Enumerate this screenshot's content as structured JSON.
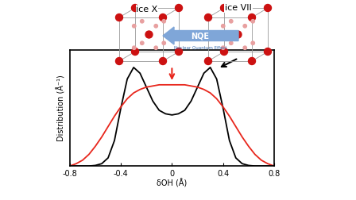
{
  "chart_data": {
    "type": "line",
    "x_label": "δOH (Å)",
    "y_label": "Distribution (Å⁻¹)",
    "x": [
      -0.8,
      -0.75,
      -0.7,
      -0.65,
      -0.6,
      -0.55,
      -0.5,
      -0.45,
      -0.4,
      -0.35,
      -0.3,
      -0.25,
      -0.2,
      -0.15,
      -0.1,
      -0.05,
      0,
      0.05,
      0.1,
      0.15,
      0.2,
      0.25,
      0.3,
      0.35,
      0.4,
      0.45,
      0.5,
      0.55,
      0.6,
      0.65,
      0.7,
      0.75,
      0.8
    ],
    "series": [
      {
        "color": "#000000",
        "values": [
          0,
          0,
          0,
          0,
          0.005,
          0.02,
          0.07,
          0.22,
          0.5,
          0.75,
          0.85,
          0.8,
          0.68,
          0.56,
          0.48,
          0.45,
          0.44,
          0.45,
          0.48,
          0.56,
          0.68,
          0.8,
          0.85,
          0.75,
          0.5,
          0.22,
          0.07,
          0.02,
          0.005,
          0,
          0,
          0,
          0
        ]
      },
      {
        "color": "#e8261c",
        "values": [
          0.0,
          0.02,
          0.05,
          0.1,
          0.17,
          0.25,
          0.34,
          0.43,
          0.51,
          0.58,
          0.63,
          0.66,
          0.68,
          0.69,
          0.7,
          0.7,
          0.7,
          0.7,
          0.7,
          0.69,
          0.68,
          0.66,
          0.63,
          0.58,
          0.51,
          0.43,
          0.34,
          0.25,
          0.17,
          0.1,
          0.05,
          0.02,
          0.0
        ]
      }
    ],
    "xlim": [
      -0.8,
      0.8
    ],
    "xticks": [
      -0.8,
      -0.4,
      0,
      0.4,
      0.8
    ],
    "ylim": [
      0,
      1.0
    ],
    "yticks": [],
    "tick_labels": "x",
    "annotations": [
      "ice X",
      "ice VII",
      "NQE",
      "Nuclear Quantum Effect"
    ]
  }
}
